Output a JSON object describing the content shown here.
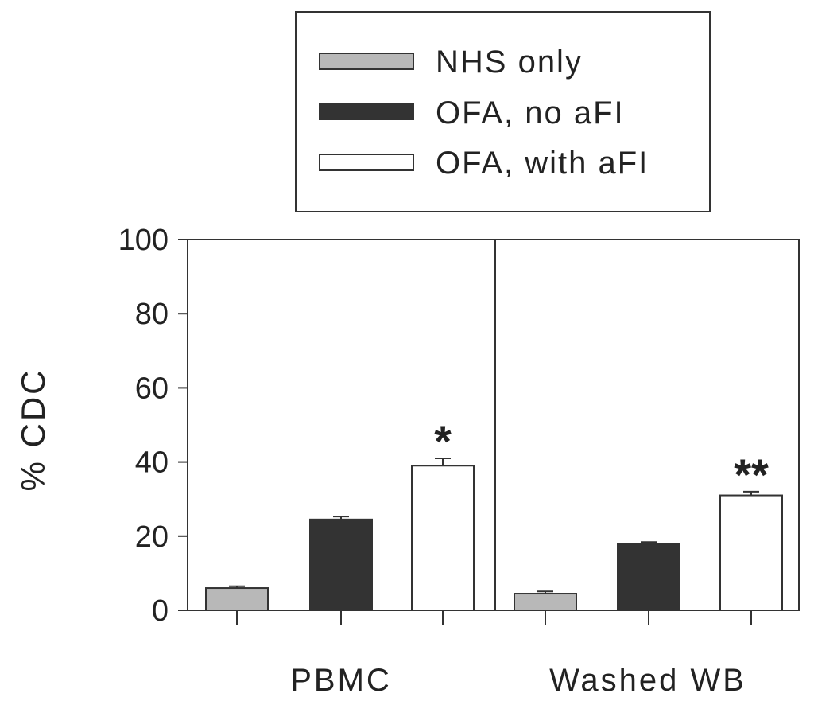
{
  "chart_data": {
    "type": "bar",
    "ylabel": "% CDC",
    "xlabel": "",
    "ylim": [
      0,
      100
    ],
    "yticks": [
      0,
      20,
      40,
      60,
      80,
      100
    ],
    "grid": false,
    "legend_position": "top-center",
    "categories": [
      "PBMC",
      "Washed WB"
    ],
    "series": [
      {
        "name": "NHS only",
        "color": "#b8b8b8",
        "values": [
          6,
          4.5
        ],
        "errors": [
          0.5,
          0.6
        ]
      },
      {
        "name": "OFA, no aFI",
        "color": "#333333",
        "values": [
          24.5,
          18
        ],
        "errors": [
          0.8,
          0.4
        ]
      },
      {
        "name": "OFA, with aFI",
        "color": "#ffffff",
        "values": [
          39,
          31
        ],
        "errors": [
          2,
          1
        ]
      }
    ],
    "annotations": [
      "*",
      "**"
    ]
  }
}
